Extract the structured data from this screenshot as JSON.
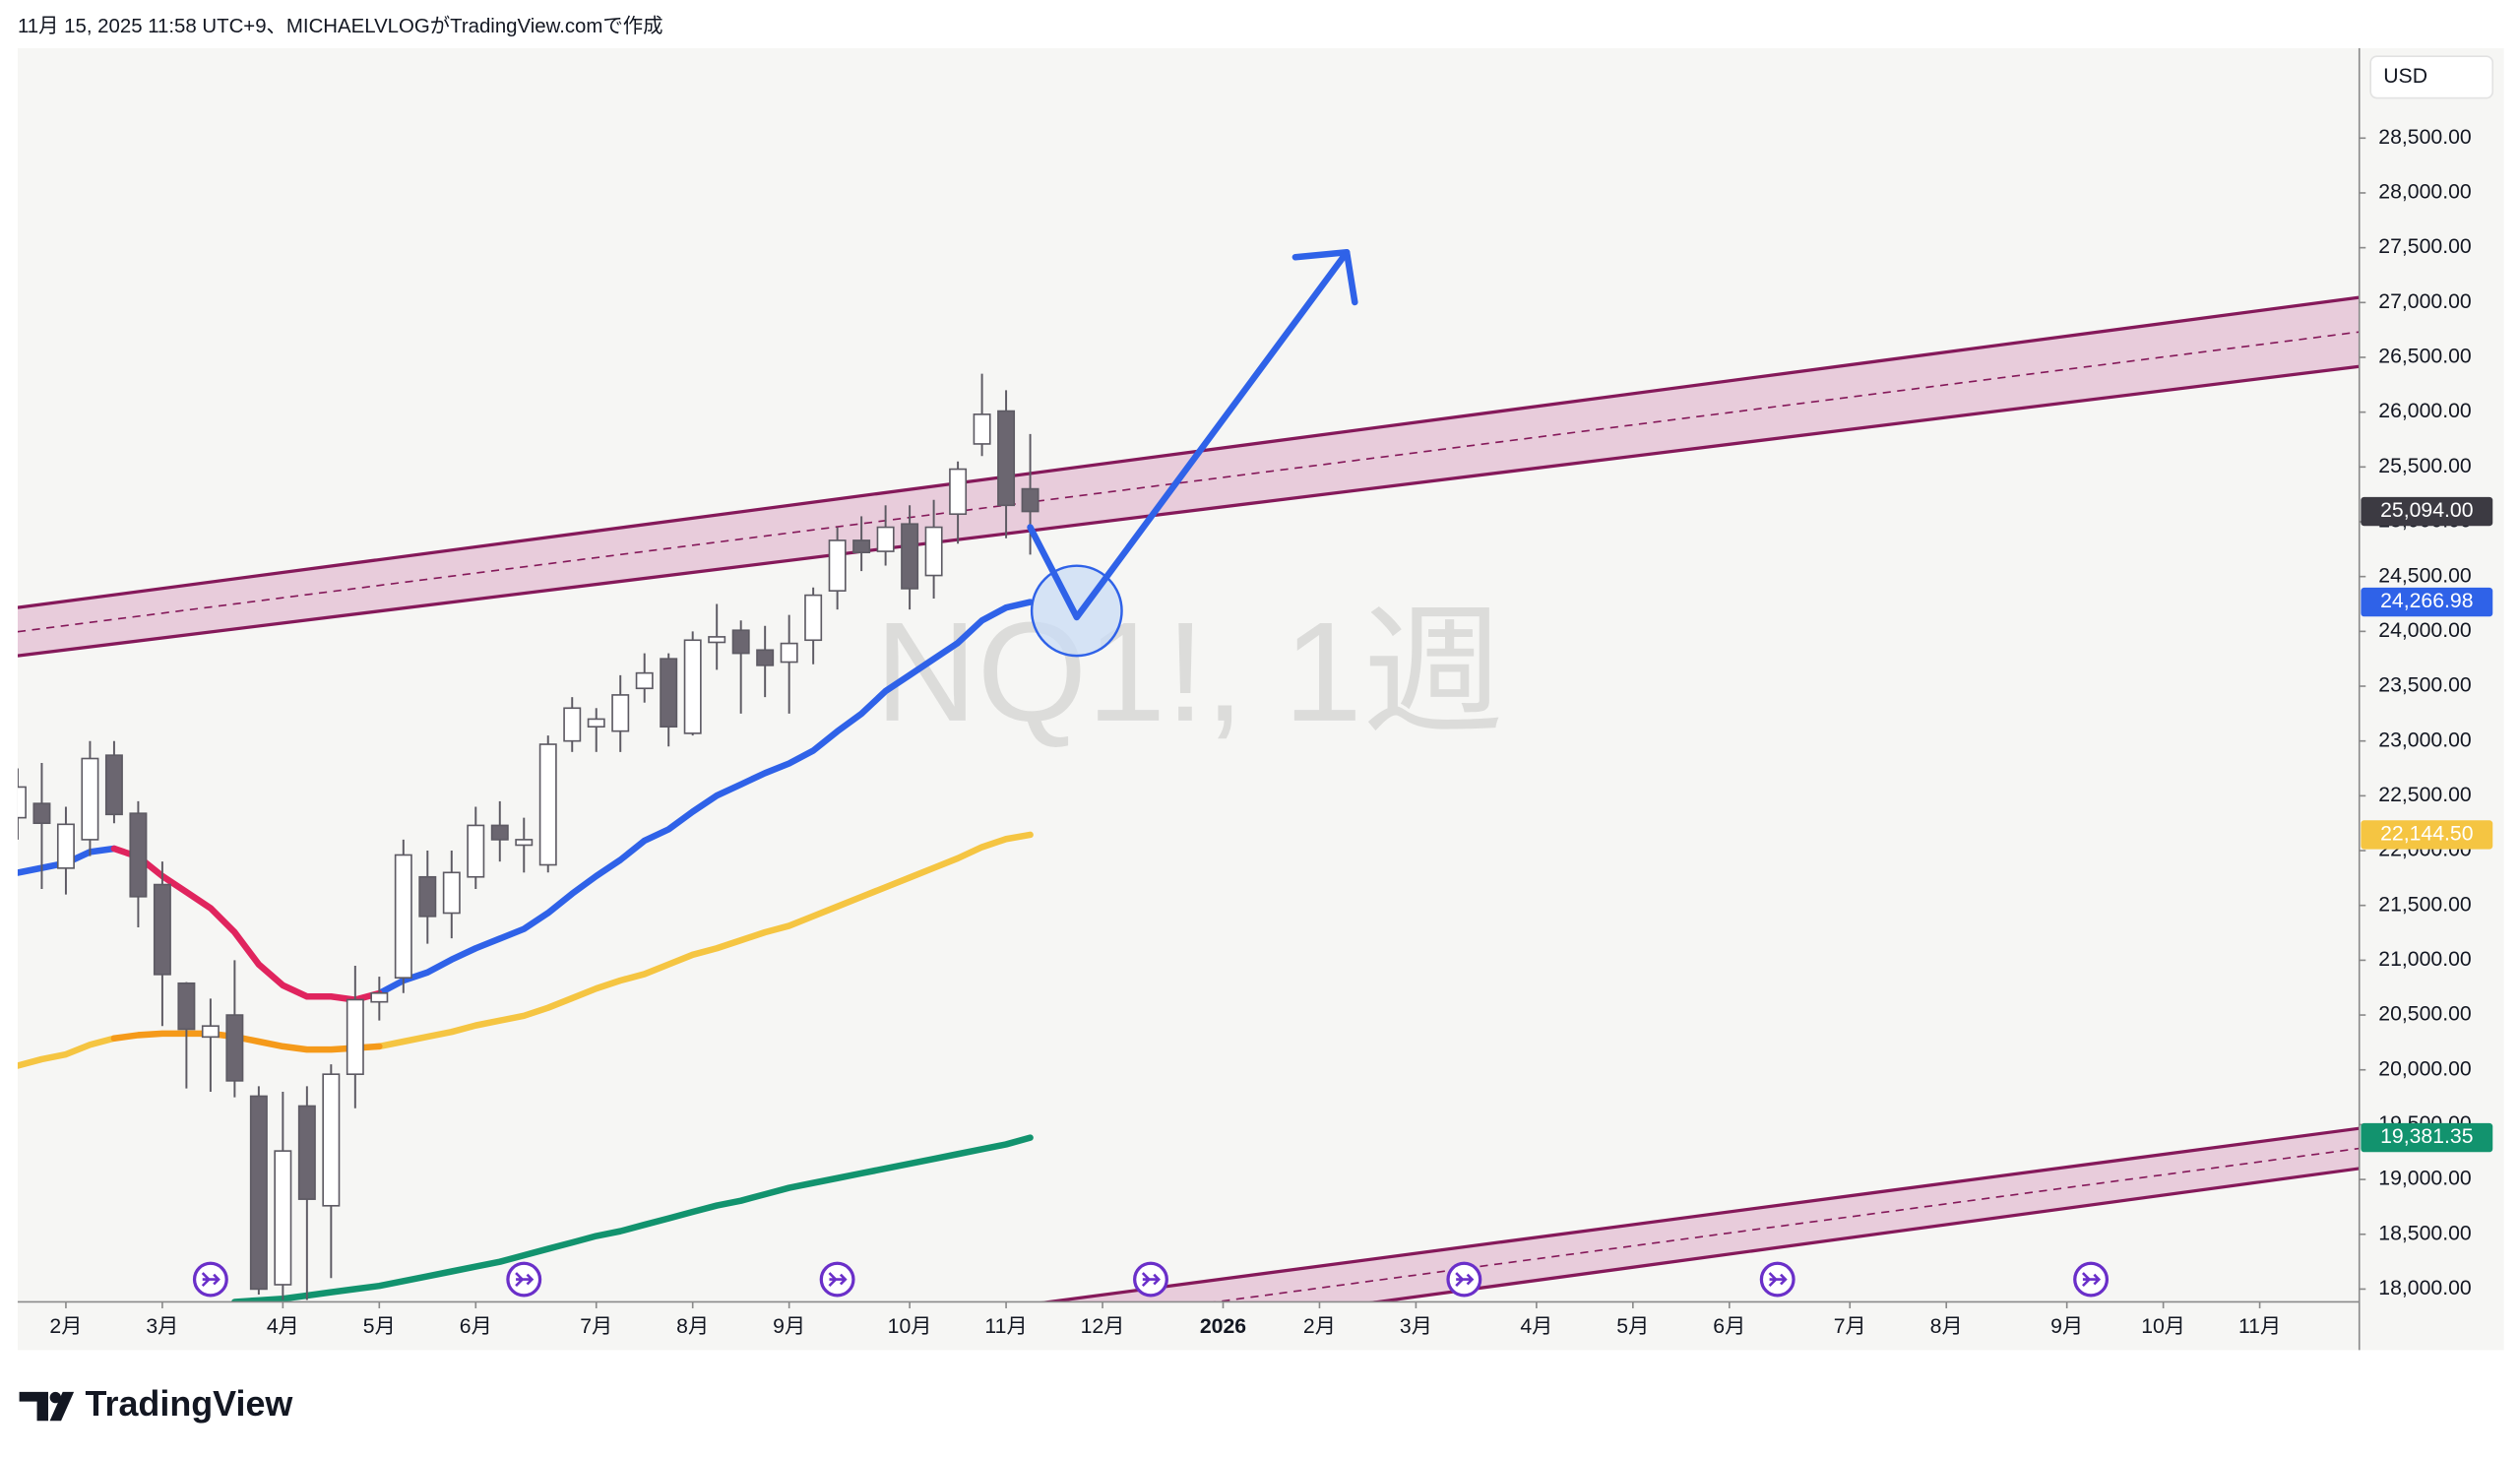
{
  "caption": "11月 15, 2025 11:58 UTC+9、MICHAELVLOGがTradingView.comで作成",
  "brand": "TradingView",
  "chart_data": {
    "type": "candlestick",
    "watermark": "NQ1!, 1週",
    "currency": "USD",
    "xlim": [
      0,
      97.13
    ],
    "ylim": [
      17883,
      29320
    ],
    "xticks": [
      {
        "value": 2,
        "label": "2月"
      },
      {
        "value": 6,
        "label": "3月"
      },
      {
        "value": 11,
        "label": "4月"
      },
      {
        "value": 15,
        "label": "5月"
      },
      {
        "value": 19,
        "label": "6月"
      },
      {
        "value": 24,
        "label": "7月"
      },
      {
        "value": 28,
        "label": "8月"
      },
      {
        "value": 32,
        "label": "9月"
      },
      {
        "value": 37,
        "label": "10月"
      },
      {
        "value": 41,
        "label": "11月"
      },
      {
        "value": 45,
        "label": "12月"
      },
      {
        "value": 50,
        "label": "2026",
        "bold": true
      },
      {
        "value": 54,
        "label": "2月"
      },
      {
        "value": 58,
        "label": "3月"
      },
      {
        "value": 63,
        "label": "4月"
      },
      {
        "value": 67,
        "label": "5月"
      },
      {
        "value": 71,
        "label": "6月"
      },
      {
        "value": 76,
        "label": "7月"
      },
      {
        "value": 80,
        "label": "8月"
      },
      {
        "value": 85,
        "label": "9月"
      },
      {
        "value": 89,
        "label": "10月"
      },
      {
        "value": 93,
        "label": "11月"
      }
    ],
    "yticks": [
      {
        "value": 18000,
        "label": "18,000.00"
      },
      {
        "value": 18500,
        "label": "18,500.00"
      },
      {
        "value": 19000,
        "label": "19,000.00"
      },
      {
        "value": 19500,
        "label": "19,500.00"
      },
      {
        "value": 20000,
        "label": "20,000.00"
      },
      {
        "value": 20500,
        "label": "20,500.00"
      },
      {
        "value": 21000,
        "label": "21,000.00"
      },
      {
        "value": 21500,
        "label": "21,500.00"
      },
      {
        "value": 22000,
        "label": "22,000.00"
      },
      {
        "value": 22500,
        "label": "22,500.00"
      },
      {
        "value": 23000,
        "label": "23,000.00"
      },
      {
        "value": 23500,
        "label": "23,500.00"
      },
      {
        "value": 24000,
        "label": "24,000.00"
      },
      {
        "value": 24500,
        "label": "24,500.00"
      },
      {
        "value": 25000,
        "label": "25,000.00"
      },
      {
        "value": 25500,
        "label": "25,500.00"
      },
      {
        "value": 26000,
        "label": "26,000.00"
      },
      {
        "value": 26500,
        "label": "26,500.00"
      },
      {
        "value": 27000,
        "label": "27,000.00"
      },
      {
        "value": 27500,
        "label": "27,500.00"
      },
      {
        "value": 28000,
        "label": "28,000.00"
      },
      {
        "value": 28500,
        "label": "28,500.00"
      }
    ],
    "candles": {
      "up_color": "#ffffff",
      "down_color": "#6b6670",
      "edge_color": "#5d5a63",
      "last_value_label": "25,094.00",
      "last_label_color": "#3c3a42",
      "x": [
        0,
        1,
        2,
        3,
        4,
        5,
        6,
        7,
        8,
        9,
        10,
        11,
        12,
        13,
        14,
        15,
        16,
        17,
        18,
        19,
        20,
        21,
        22,
        23,
        24,
        25,
        26,
        27,
        28,
        29,
        30,
        31,
        32,
        33,
        34,
        35,
        36,
        37,
        38,
        39,
        40,
        41,
        42
      ],
      "open": [
        22300,
        22430,
        21840,
        22100,
        22870,
        22340,
        21690,
        20790,
        20300,
        20500,
        19760,
        18040,
        19670,
        18760,
        19960,
        20620,
        20840,
        21760,
        21430,
        21760,
        22230,
        22050,
        21870,
        23000,
        23130,
        23090,
        23480,
        23750,
        23070,
        23900,
        24010,
        23830,
        23720,
        23920,
        24370,
        24830,
        24730,
        24980,
        24510,
        25070,
        25710,
        26010,
        25300
      ],
      "high": [
        22750,
        22800,
        22400,
        23000,
        23000,
        22450,
        21900,
        20800,
        20650,
        21000,
        19850,
        19800,
        19850,
        20050,
        20950,
        20850,
        22100,
        22000,
        22000,
        22400,
        22450,
        22300,
        23050,
        23400,
        23300,
        23600,
        23800,
        23800,
        24000,
        24250,
        24100,
        24050,
        24150,
        24400,
        24950,
        25050,
        25150,
        25150,
        25200,
        25550,
        26350,
        26200,
        25800
      ],
      "low": [
        22100,
        21650,
        21600,
        21950,
        22250,
        21300,
        20400,
        19830,
        19800,
        19750,
        17950,
        17900,
        17900,
        18100,
        19650,
        20450,
        20700,
        21150,
        21200,
        21650,
        21900,
        21800,
        21800,
        22900,
        22900,
        22900,
        23350,
        22950,
        23050,
        23650,
        23250,
        23400,
        23250,
        23700,
        24200,
        24550,
        24600,
        24200,
        24300,
        24800,
        25600,
        24850,
        24700
      ],
      "close": [
        22580,
        22250,
        22240,
        22840,
        22330,
        21580,
        20870,
        20370,
        20400,
        19900,
        18000,
        19260,
        18820,
        19960,
        20640,
        20700,
        21960,
        21400,
        21800,
        22230,
        22100,
        22100,
        22970,
        23300,
        23200,
        23420,
        23620,
        23130,
        23920,
        23950,
        23800,
        23690,
        23890,
        24330,
        24830,
        24720,
        24950,
        24390,
        24950,
        25480,
        25980,
        25150,
        25094
      ]
    },
    "series": [
      {
        "color": "#2f62e8",
        "last_value_label": "24,266.98",
        "values": [
          21798,
          21842,
          21886,
          21988,
          22018,
          null,
          null,
          null,
          null,
          null,
          null,
          null,
          null,
          null,
          null,
          20698,
          20815,
          20889,
          21006,
          21109,
          21197,
          21285,
          21431,
          21607,
          21768,
          21915,
          22091,
          22194,
          22355,
          22502,
          22604,
          22707,
          22795,
          22912,
          23088,
          23249,
          23455,
          23601,
          23748,
          23895,
          24100,
          24217,
          24266.98
        ]
      },
      {
        "color": "#e0245e",
        "values": [
          null,
          null,
          null,
          null,
          22018,
          21944,
          21768,
          21622,
          21475,
          21255,
          20962,
          20771,
          20669,
          20669,
          20639,
          20698,
          null,
          null,
          null,
          null,
          null,
          null,
          null,
          null,
          null,
          null,
          null,
          null,
          null,
          null,
          null,
          null,
          null,
          null,
          null,
          null,
          null,
          null,
          null,
          null,
          null,
          null,
          null
        ]
      },
      {
        "color": "#f5c542",
        "last_value_label": "22,144.50",
        "values": [
          20038,
          20097,
          20141,
          20229,
          20287,
          null,
          null,
          null,
          null,
          null,
          null,
          null,
          null,
          null,
          null,
          20214,
          20258,
          20302,
          20346,
          20405,
          20449,
          20493,
          20566,
          20654,
          20742,
          20815,
          20874,
          20962,
          21050,
          21109,
          21182,
          21255,
          21314,
          21402,
          21490,
          21578,
          21666,
          21754,
          21842,
          21930,
          22032,
          22106,
          22144.5
        ]
      },
      {
        "color": "#f59a1a",
        "values": [
          null,
          null,
          null,
          null,
          20287,
          20317,
          20331,
          20331,
          20331,
          20302,
          20258,
          20214,
          20185,
          20185,
          20199,
          20214,
          null,
          null,
          null,
          null,
          null,
          null,
          null,
          null,
          null,
          null,
          null,
          null,
          null,
          null,
          null,
          null,
          null,
          null,
          null,
          null,
          null,
          null,
          null,
          null,
          null,
          null,
          null
        ]
      },
      {
        "color": "#12936e",
        "last_value_label": "19,381.35",
        "values": [
          null,
          null,
          null,
          null,
          null,
          null,
          null,
          null,
          null,
          17883,
          17897,
          17912,
          17941,
          17971,
          18000,
          18029,
          18073,
          18117,
          18161,
          18205,
          18249,
          18308,
          18367,
          18425,
          18484,
          18528,
          18587,
          18645,
          18704,
          18762,
          18806,
          18865,
          18924,
          18968,
          19012,
          19056,
          19100,
          19144,
          19188,
          19232,
          19276,
          19320,
          19381.35
        ]
      }
    ],
    "drawings": [
      {
        "type": "channel",
        "color": "#85195a",
        "fill": "#dcaac6",
        "upper": [
          [
            0,
            24217
          ],
          [
            97.13,
            27047
          ]
        ],
        "lower": [
          [
            0,
            23777
          ],
          [
            97.13,
            26417
          ]
        ]
      },
      {
        "type": "channel",
        "color": "#85195a",
        "fill": "#dcaac6",
        "upper": [
          [
            0,
            16636
          ],
          [
            97.13,
            19466
          ]
        ],
        "lower": [
          [
            0,
            16196
          ],
          [
            97.13,
            19100
          ]
        ]
      },
      {
        "type": "circle",
        "color": "#2f62e8",
        "center": [
          43.93,
          24188
        ]
      },
      {
        "type": "arrow",
        "color": "#2f62e8",
        "points": [
          [
            42,
            24950
          ],
          [
            43.93,
            24129
          ],
          [
            55.13,
            27458
          ]
        ]
      }
    ]
  }
}
